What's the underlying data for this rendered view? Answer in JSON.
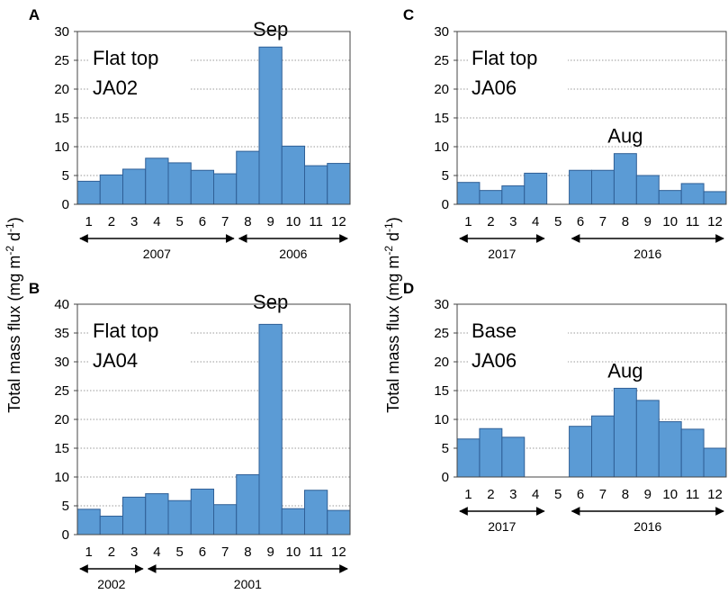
{
  "y_axis_label": {
    "main": "Total mass flux (mg m",
    "sup1": "-2",
    "mid": " d",
    "sup2": "-1",
    "end": ")"
  },
  "colors": {
    "bar_fill": "#5b9bd5",
    "bar_stroke": "#2f5f96",
    "grid": "#999999",
    "frame": "#444444"
  },
  "chart_data": [
    {
      "panel": "A",
      "type": "bar",
      "site": "Flat top",
      "station": "JA02",
      "categories": [
        "1",
        "2",
        "3",
        "4",
        "5",
        "6",
        "7",
        "8",
        "9",
        "10",
        "11",
        "12"
      ],
      "values": [
        4.0,
        5.1,
        6.1,
        8.0,
        7.2,
        5.9,
        5.3,
        9.2,
        27.3,
        10.1,
        6.7,
        7.1
      ],
      "ylim": [
        0,
        30
      ],
      "yticks": [
        0,
        5,
        10,
        15,
        20,
        25,
        30
      ],
      "annotation": "Sep",
      "year_spans": [
        {
          "label": "2007",
          "months": [
            1,
            7
          ]
        },
        {
          "label": "2006",
          "months": [
            8,
            12
          ]
        }
      ]
    },
    {
      "panel": "B",
      "type": "bar",
      "site": "Flat top",
      "station": "JA04",
      "categories": [
        "1",
        "2",
        "3",
        "4",
        "5",
        "6",
        "7",
        "8",
        "9",
        "10",
        "11",
        "12"
      ],
      "values": [
        4.4,
        3.2,
        6.5,
        7.1,
        5.9,
        7.9,
        5.2,
        10.4,
        36.5,
        4.5,
        7.7,
        4.2
      ],
      "ylim": [
        0,
        40
      ],
      "yticks": [
        0,
        5,
        10,
        15,
        20,
        25,
        30,
        35,
        40
      ],
      "annotation": "Sep",
      "year_spans": [
        {
          "label": "2002",
          "months": [
            1,
            3
          ]
        },
        {
          "label": "2001",
          "months": [
            4,
            12
          ]
        }
      ]
    },
    {
      "panel": "C",
      "type": "bar",
      "site": "Flat top",
      "station": "JA06",
      "categories": [
        "1",
        "2",
        "3",
        "4",
        "5",
        "6",
        "7",
        "8",
        "9",
        "10",
        "11",
        "12"
      ],
      "values": [
        3.8,
        2.4,
        3.2,
        5.4,
        0,
        5.9,
        5.9,
        8.8,
        5.0,
        2.4,
        3.6,
        2.2
      ],
      "ylim": [
        0,
        30
      ],
      "yticks": [
        0,
        5,
        10,
        15,
        20,
        25,
        30
      ],
      "annotation": "Aug",
      "year_spans": [
        {
          "label": "2017",
          "months": [
            1,
            4
          ]
        },
        {
          "label": "2016",
          "months": [
            6,
            12
          ]
        }
      ]
    },
    {
      "panel": "D",
      "type": "bar",
      "site": "Base",
      "station": "JA06",
      "categories": [
        "1",
        "2",
        "3",
        "4",
        "5",
        "6",
        "7",
        "8",
        "9",
        "10",
        "11",
        "12"
      ],
      "values": [
        6.6,
        8.4,
        6.9,
        0,
        0,
        8.8,
        10.6,
        15.4,
        13.3,
        9.6,
        8.3,
        5.0
      ],
      "ylim": [
        0,
        30
      ],
      "yticks": [
        0,
        5,
        10,
        15,
        20,
        25,
        30
      ],
      "annotation": "Aug",
      "year_spans": [
        {
          "label": "2017",
          "months": [
            1,
            4
          ]
        },
        {
          "label": "2016",
          "months": [
            6,
            12
          ]
        }
      ]
    }
  ]
}
